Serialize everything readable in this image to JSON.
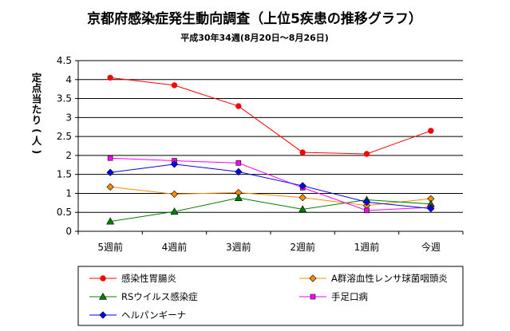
{
  "chart_data": {
    "type": "line",
    "title": "京都府感染症発生動向調査（上位5疾患の推移グラフ）",
    "subtitle": "平成30年34週(8月20日～8月26日)",
    "ylabel_chars": [
      "定",
      "点",
      "当",
      "た",
      "り",
      "(",
      "人",
      ")"
    ],
    "ylabel": "定点当たり(人)",
    "xlabel": "",
    "categories": [
      "5週前",
      "4週前",
      "3週前",
      "2週前",
      "1週前",
      "今週"
    ],
    "ylim": [
      0,
      4.5
    ],
    "yticks": [
      "0",
      "0.5",
      "1",
      "1.5",
      "2",
      "2.5",
      "3",
      "3.5",
      "4",
      "4.5"
    ],
    "grid": "horizontal",
    "legend_position": "bottom",
    "series": [
      {
        "name": "感染性胃腸炎",
        "color": "#ff0000",
        "marker": "circle",
        "values": [
          4.05,
          3.85,
          3.3,
          2.08,
          2.04,
          2.65
        ]
      },
      {
        "name": "A群溶血性レンサ球菌咽頭炎",
        "color": "#ff8c00",
        "marker": "diamond",
        "values": [
          1.17,
          0.98,
          1.02,
          0.89,
          0.68,
          0.86
        ]
      },
      {
        "name": "RSウイルス感染症",
        "color": "#008000",
        "marker": "triangle",
        "values": [
          0.26,
          0.52,
          0.88,
          0.58,
          0.83,
          0.72
        ]
      },
      {
        "name": "手足口病",
        "color": "#ff00ff",
        "marker": "square",
        "values": [
          1.93,
          1.86,
          1.8,
          1.15,
          0.55,
          0.63
        ]
      },
      {
        "name": "ヘルパンギーナ",
        "color": "#0000ff",
        "marker": "diamond",
        "values": [
          1.55,
          1.77,
          1.57,
          1.2,
          0.77,
          0.6
        ]
      }
    ]
  }
}
